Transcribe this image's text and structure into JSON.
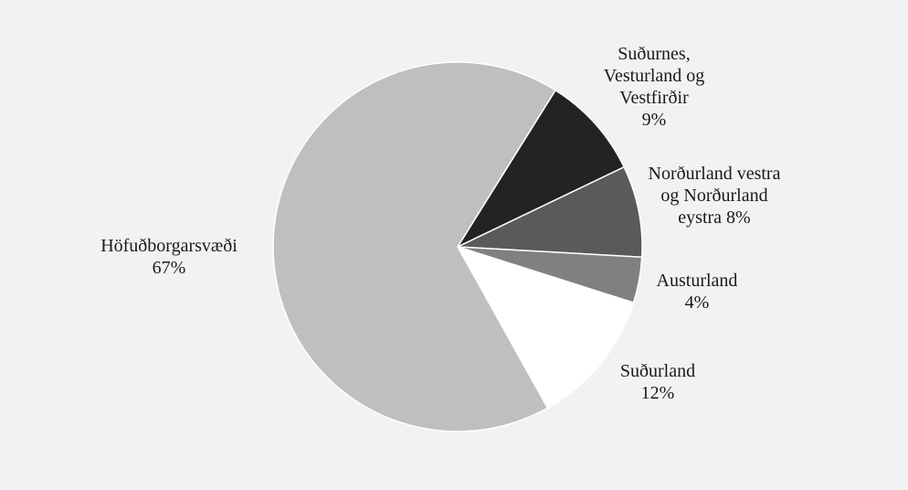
{
  "chart_data": {
    "type": "pie",
    "slices": [
      {
        "label_lines": [
          "Suðurnes,",
          "Vesturland og",
          "Vestfirðir",
          "9%"
        ],
        "name": "Suðurnes, Vesturland og Vestfirðir",
        "value": 9,
        "color": "#222322"
      },
      {
        "label_lines": [
          "Norðurland vestra",
          "og Norðurland",
          "eystra 8%"
        ],
        "name": "Norðurland vestra og Norðurland eystra",
        "value": 8,
        "color": "#5a5a59"
      },
      {
        "label_lines": [
          "Austurland",
          "4%"
        ],
        "name": "Austurland",
        "value": 4,
        "color": "#808080"
      },
      {
        "label_lines": [
          "Suðurland",
          "12%"
        ],
        "name": "Suðurland",
        "value": 12,
        "color": "#ffffff"
      },
      {
        "label_lines": [
          "Höfuðborgarsvæði",
          "67%"
        ],
        "name": "Höfuðborgarsvæði",
        "value": 67,
        "color": "#bfbfbf"
      }
    ]
  }
}
